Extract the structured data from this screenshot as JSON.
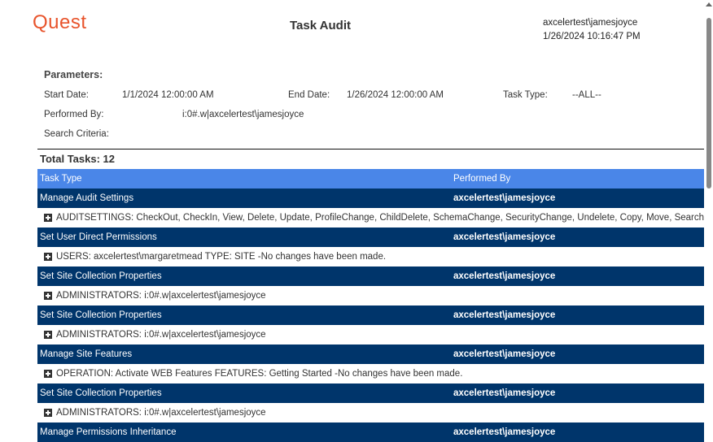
{
  "header": {
    "logo": "Quest",
    "title": "Task Audit",
    "user": "axcelertest\\jamesjoyce",
    "timestamp": "1/26/2024 10:16:47 PM"
  },
  "parameters": {
    "heading": "Parameters:",
    "start_label": "Start Date:",
    "start_value": "1/1/2024 12:00:00 AM",
    "end_label": "End Date:",
    "end_value": "1/26/2024 12:00:00 AM",
    "type_label": "Task Type:",
    "type_value": "--ALL--",
    "performed_label": "Performed By:",
    "performed_value": "i:0#.w|axcelertest\\jamesjoyce",
    "search_label": "Search Criteria:"
  },
  "total": "Total Tasks: 12",
  "table": {
    "columns": [
      "Task Type",
      "Performed By"
    ],
    "rows": [
      {
        "task": "Manage Audit Settings",
        "by": "axcelertest\\jamesjoyce",
        "detail": "AUDITSETTINGS: CheckOut, CheckIn, View, Delete, Update, ProfileChange, ChildDelete, SchemaChange, SecurityChange, Undelete, Copy, Move, Search"
      },
      {
        "task": "Set User Direct Permissions",
        "by": "axcelertest\\jamesjoyce",
        "detail": "USERS: axcelertest\\margaretmead  TYPE: SITE  -No changes have been made."
      },
      {
        "task": "Set Site Collection Properties",
        "by": "axcelertest\\jamesjoyce",
        "detail": "ADMINISTRATORS: i:0#.w|axcelertest\\jamesjoyce"
      },
      {
        "task": "Set Site Collection Properties",
        "by": "axcelertest\\jamesjoyce",
        "detail": "ADMINISTRATORS: i:0#.w|axcelertest\\jamesjoyce"
      },
      {
        "task": "Manage Site Features",
        "by": "axcelertest\\jamesjoyce",
        "detail": "OPERATION: Activate WEB Features  FEATURES: Getting Started  -No changes have been made."
      },
      {
        "task": "Set Site Collection Properties",
        "by": "axcelertest\\jamesjoyce",
        "detail": "ADMINISTRATORS: i:0#.w|axcelertest\\jamesjoyce"
      },
      {
        "task": "Manage Permissions Inheritance",
        "by": "axcelertest\\jamesjoyce"
      }
    ]
  },
  "colors": {
    "brand": "#e8542c",
    "header": "#4a86e8",
    "task_row": "#00356b"
  }
}
